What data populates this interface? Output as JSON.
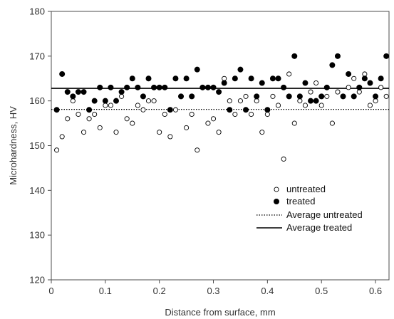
{
  "chart_data": {
    "type": "scatter",
    "xlabel": "Distance from surface, mm",
    "ylabel": "Microhardness, HV",
    "xlim": [
      0,
      0.625
    ],
    "ylim": [
      120,
      180
    ],
    "x_ticks": [
      0,
      0.1,
      0.2,
      0.3,
      0.4,
      0.5,
      0.6
    ],
    "y_ticks": [
      120,
      130,
      140,
      150,
      160,
      170,
      180
    ],
    "x_tick_labels": [
      "0",
      "0.1",
      "0.2",
      "0.3",
      "0.4",
      "0.5",
      "0.6"
    ],
    "y_tick_labels": [
      "120",
      "130",
      "140",
      "150",
      "160",
      "170",
      "180"
    ],
    "grid": false,
    "legend_position": "bottom-right",
    "series": [
      {
        "name": "untreated",
        "marker": "open-circle",
        "points": [
          [
            0.01,
            149
          ],
          [
            0.02,
            152
          ],
          [
            0.03,
            156
          ],
          [
            0.04,
            160
          ],
          [
            0.05,
            157
          ],
          [
            0.06,
            153
          ],
          [
            0.07,
            156
          ],
          [
            0.08,
            157
          ],
          [
            0.09,
            154
          ],
          [
            0.1,
            159
          ],
          [
            0.11,
            159
          ],
          [
            0.12,
            153
          ],
          [
            0.13,
            161
          ],
          [
            0.14,
            156
          ],
          [
            0.15,
            155
          ],
          [
            0.16,
            159
          ],
          [
            0.17,
            158
          ],
          [
            0.18,
            160
          ],
          [
            0.19,
            160
          ],
          [
            0.2,
            153
          ],
          [
            0.21,
            157
          ],
          [
            0.22,
            152
          ],
          [
            0.23,
            158
          ],
          [
            0.24,
            161
          ],
          [
            0.25,
            154
          ],
          [
            0.26,
            157
          ],
          [
            0.27,
            149
          ],
          [
            0.28,
            163
          ],
          [
            0.29,
            155
          ],
          [
            0.3,
            156
          ],
          [
            0.31,
            153
          ],
          [
            0.32,
            165
          ],
          [
            0.33,
            160
          ],
          [
            0.34,
            157
          ],
          [
            0.35,
            160
          ],
          [
            0.36,
            161
          ],
          [
            0.37,
            157
          ],
          [
            0.38,
            160
          ],
          [
            0.39,
            153
          ],
          [
            0.4,
            157
          ],
          [
            0.41,
            161
          ],
          [
            0.42,
            159
          ],
          [
            0.43,
            147
          ],
          [
            0.44,
            166
          ],
          [
            0.45,
            155
          ],
          [
            0.46,
            160
          ],
          [
            0.47,
            159
          ],
          [
            0.48,
            162
          ],
          [
            0.49,
            164
          ],
          [
            0.5,
            159
          ],
          [
            0.51,
            161
          ],
          [
            0.52,
            155
          ],
          [
            0.53,
            162
          ],
          [
            0.54,
            161
          ],
          [
            0.55,
            163
          ],
          [
            0.56,
            165
          ],
          [
            0.57,
            162
          ],
          [
            0.58,
            166
          ],
          [
            0.59,
            159
          ],
          [
            0.6,
            160
          ],
          [
            0.61,
            163
          ],
          [
            0.62,
            161
          ]
        ]
      },
      {
        "name": "treated",
        "marker": "filled-circle",
        "points": [
          [
            0.01,
            158
          ],
          [
            0.02,
            166
          ],
          [
            0.03,
            162
          ],
          [
            0.04,
            161
          ],
          [
            0.05,
            162
          ],
          [
            0.06,
            162
          ],
          [
            0.07,
            158
          ],
          [
            0.08,
            160
          ],
          [
            0.09,
            163
          ],
          [
            0.1,
            160
          ],
          [
            0.11,
            163
          ],
          [
            0.12,
            160
          ],
          [
            0.13,
            162
          ],
          [
            0.14,
            163
          ],
          [
            0.15,
            165
          ],
          [
            0.16,
            163
          ],
          [
            0.17,
            161
          ],
          [
            0.18,
            165
          ],
          [
            0.19,
            163
          ],
          [
            0.2,
            163
          ],
          [
            0.21,
            163
          ],
          [
            0.22,
            158
          ],
          [
            0.23,
            165
          ],
          [
            0.24,
            161
          ],
          [
            0.25,
            165
          ],
          [
            0.26,
            161
          ],
          [
            0.27,
            167
          ],
          [
            0.28,
            163
          ],
          [
            0.29,
            163
          ],
          [
            0.3,
            163
          ],
          [
            0.31,
            162
          ],
          [
            0.32,
            164
          ],
          [
            0.33,
            158
          ],
          [
            0.34,
            165
          ],
          [
            0.35,
            167
          ],
          [
            0.36,
            158
          ],
          [
            0.37,
            165
          ],
          [
            0.38,
            161
          ],
          [
            0.39,
            164
          ],
          [
            0.4,
            158
          ],
          [
            0.41,
            165
          ],
          [
            0.42,
            165
          ],
          [
            0.43,
            163
          ],
          [
            0.44,
            161
          ],
          [
            0.45,
            170
          ],
          [
            0.46,
            161
          ],
          [
            0.47,
            164
          ],
          [
            0.48,
            160
          ],
          [
            0.49,
            160
          ],
          [
            0.5,
            161
          ],
          [
            0.51,
            163
          ],
          [
            0.52,
            168
          ],
          [
            0.53,
            170
          ],
          [
            0.54,
            161
          ],
          [
            0.55,
            166
          ],
          [
            0.56,
            161
          ],
          [
            0.57,
            163
          ],
          [
            0.58,
            165
          ],
          [
            0.59,
            164
          ],
          [
            0.6,
            161
          ],
          [
            0.61,
            165
          ],
          [
            0.62,
            170
          ]
        ]
      }
    ],
    "reference_lines": [
      {
        "name": "Average untreated",
        "y": 158.1,
        "style": "dotted"
      },
      {
        "name": "Average treated",
        "y": 162.8,
        "style": "solid"
      }
    ],
    "legend": [
      "untreated",
      "treated",
      "Average untreated",
      "Average treated"
    ]
  }
}
